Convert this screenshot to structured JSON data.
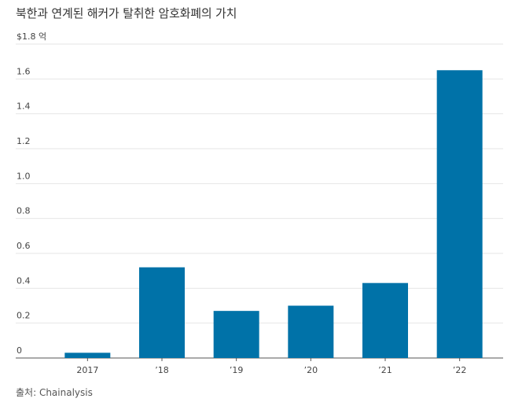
{
  "chart_data": {
    "type": "bar",
    "title": "북한과 연계된 해커가 탈취한 암호화폐의 가치",
    "source": "출처: Chainalysis",
    "categories": [
      "2017",
      "’18",
      "’19",
      "’20",
      "’21",
      "’22"
    ],
    "values": [
      0.03,
      0.52,
      0.27,
      0.3,
      0.43,
      1.65
    ],
    "ylim": [
      0,
      1.8
    ],
    "yticks": [
      0,
      0.2,
      0.4,
      0.6,
      0.8,
      1.0,
      1.2,
      1.4,
      1.6,
      1.8
    ],
    "ytick_labels": [
      "0",
      "0.2",
      "0.4",
      "0.6",
      "0.8",
      "1.0",
      "1.2",
      "1.4",
      "1.6",
      "$1.8 억"
    ],
    "grid": true,
    "colors": {
      "bar": "#0072a8"
    }
  }
}
